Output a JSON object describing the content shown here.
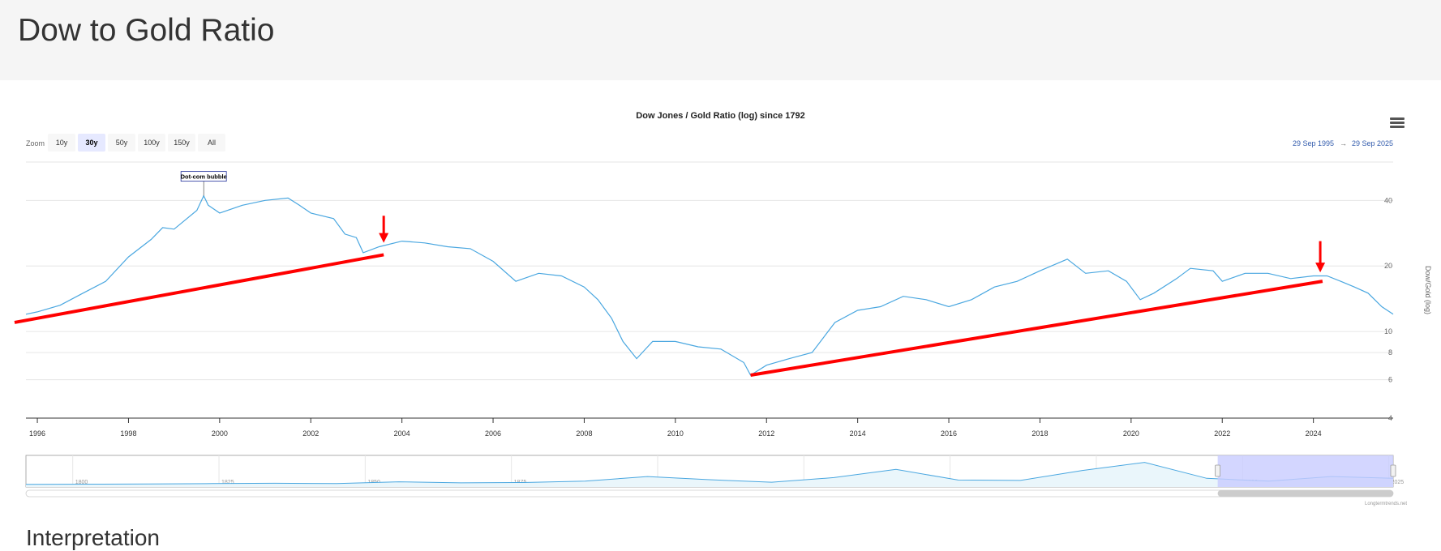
{
  "page": {
    "title": "Dow to Gold Ratio",
    "next_heading": "Interpretation"
  },
  "toolbar": {
    "zoom_label": "Zoom",
    "zoom_buttons": [
      "10y",
      "30y",
      "50y",
      "100y",
      "150y",
      "All"
    ],
    "active_zoom": "30y",
    "from_date": "29 Sep 1995",
    "to_date": "29 Sep 2025",
    "range_separator": "→",
    "menu_icon": "hamburger-menu-icon"
  },
  "credit": "Longtermtrends.net",
  "colors": {
    "series": "#4aa7e0",
    "annotation_line": "#ff0000",
    "navigator_mask": "#c8ccff",
    "date_text": "#335cad"
  },
  "chart_data": {
    "type": "line",
    "title": "Dow Jones / Gold Ratio (log) since 1792",
    "ylabel": "Dow/Gold (log)",
    "xlabel": "",
    "yscale": "log",
    "ylim": [
      4,
      60
    ],
    "xlim": [
      1995.75,
      2025.75
    ],
    "yticks": [
      4,
      6,
      8,
      10,
      20,
      40
    ],
    "xticks": [
      1996,
      1998,
      2000,
      2002,
      2004,
      2006,
      2008,
      2010,
      2012,
      2014,
      2016,
      2018,
      2020,
      2022,
      2024
    ],
    "grid": true,
    "legend": "none",
    "series": [
      {
        "x": [
          1995.75,
          1996.0,
          1996.5,
          1997.0,
          1997.5,
          1998.0,
          1998.5,
          1998.75,
          1999.0,
          1999.5,
          1999.65,
          1999.75,
          2000.0,
          2000.5,
          2001.0,
          2001.5,
          2001.75,
          2002.0,
          2002.5,
          2002.75,
          2003.0,
          2003.15,
          2003.5,
          2004.0,
          2004.5,
          2005.0,
          2005.5,
          2006.0,
          2006.5,
          2007.0,
          2007.5,
          2008.0,
          2008.3,
          2008.6,
          2008.85,
          2009.15,
          2009.5,
          2010.0,
          2010.5,
          2011.0,
          2011.5,
          2011.65,
          2012.0,
          2012.5,
          2012.8,
          2013.0,
          2013.5,
          2014.0,
          2014.5,
          2015.0,
          2015.5,
          2016.0,
          2016.5,
          2017.0,
          2017.5,
          2018.0,
          2018.6,
          2019.0,
          2019.5,
          2019.9,
          2020.2,
          2020.5,
          2021.0,
          2021.3,
          2021.8,
          2022.0,
          2022.5,
          2023.0,
          2023.5,
          2024.0,
          2024.3,
          2024.6,
          2024.9,
          2025.2,
          2025.5,
          2025.75
        ],
        "values": [
          12.0,
          12.3,
          13.2,
          15.0,
          17.0,
          22.0,
          26.5,
          30.0,
          29.5,
          36.0,
          42.0,
          38.0,
          35.0,
          38.0,
          40.0,
          41.0,
          38.0,
          35.0,
          33.0,
          28.0,
          27.0,
          23.0,
          24.5,
          26.0,
          25.5,
          24.5,
          24.0,
          21.0,
          17.0,
          18.5,
          18.0,
          16.0,
          14.0,
          11.5,
          9.0,
          7.5,
          9.0,
          9.0,
          8.5,
          8.3,
          7.2,
          6.3,
          7.0,
          7.5,
          7.8,
          8.0,
          11.0,
          12.5,
          13.0,
          14.5,
          14.0,
          13.0,
          14.0,
          16.0,
          17.0,
          19.0,
          21.5,
          18.5,
          19.0,
          17.0,
          14.0,
          15.0,
          17.5,
          19.5,
          19.0,
          17.0,
          18.5,
          18.5,
          17.5,
          18.0,
          18.0,
          17.0,
          16.0,
          15.0,
          13.0,
          12.0
        ]
      }
    ],
    "annotations": [
      {
        "label": "Dot-com bubble",
        "x": 1999.65,
        "y": 42.0
      }
    ],
    "trendlines": [
      {
        "from": [
          1995.5,
          11.0
        ],
        "to": [
          2003.6,
          22.5
        ]
      },
      {
        "from": [
          2011.65,
          6.3
        ],
        "to": [
          2024.2,
          17.0
        ]
      }
    ],
    "arrows": [
      {
        "x": 2003.6,
        "y_from": 34.0,
        "y_to": 26.0
      },
      {
        "x": 2024.15,
        "y_from": 26.0,
        "y_to": 19.0
      }
    ],
    "navigator": {
      "xticks": [
        1800,
        1825,
        1850,
        1875,
        1900,
        1925,
        1950,
        1975,
        2000,
        2025
      ],
      "xlim": [
        1792,
        2025.75
      ],
      "selected": [
        1995.75,
        2025.75
      ],
      "values": [
        0.3,
        0.35,
        0.4,
        0.5,
        0.6,
        0.5,
        1.0,
        0.7,
        0.8,
        1.2,
        2.5,
        1.6,
        0.9,
        2.2,
        4.5,
        1.5,
        1.4,
        4.2,
        6.5,
        2.0,
        1.2,
        2.5,
        2.0
      ]
    }
  }
}
